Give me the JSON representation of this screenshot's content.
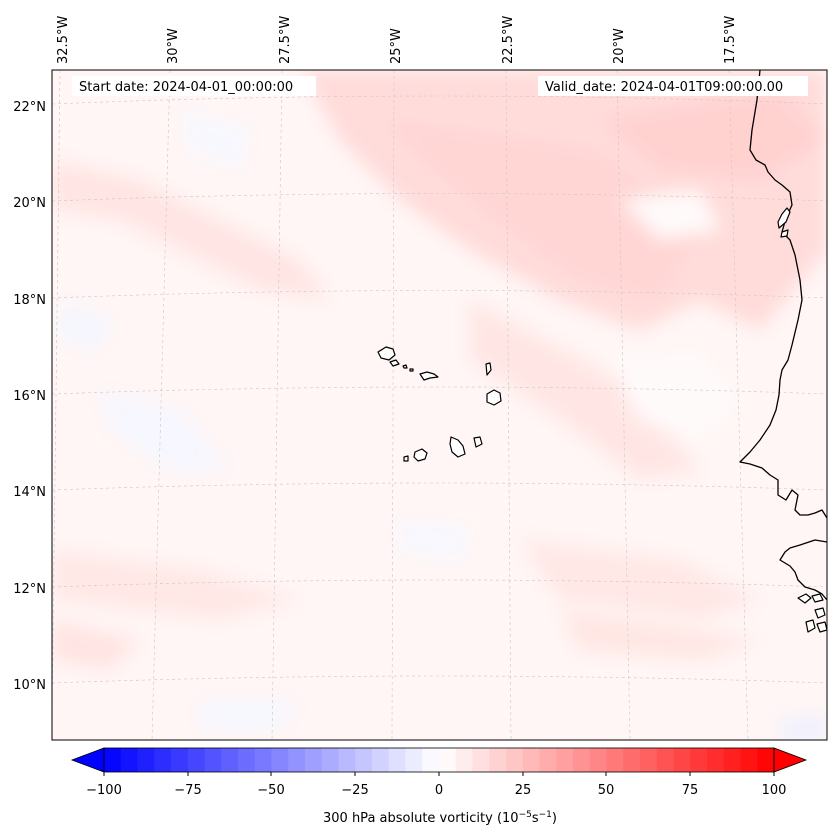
{
  "map": {
    "header": {
      "start_date": "Start date: 2024-04-01_00:00:00",
      "valid_date": "Valid_date: 2024-04-01T09:00:00.00"
    },
    "longitude_labels": [
      "32.5°W",
      "30°W",
      "27.5°W",
      "25°W",
      "22.5°W",
      "20°W",
      "17.5°W"
    ],
    "latitude_labels": [
      "22°N",
      "20°N",
      "18°N",
      "16°N",
      "14°N",
      "12°N",
      "10°N"
    ],
    "colorbar": {
      "label_prefix": "300 hPa absolute vorticity (10",
      "label_exp1": "−5",
      "label_mid": "s",
      "label_exp2": "−1",
      "label_suffix": ")",
      "ticks": [
        "−100",
        "−75",
        "−50",
        "−25",
        "0",
        "25",
        "50",
        "75",
        "100"
      ],
      "min_color": "#0000ff",
      "mid_color": "#ffffff",
      "max_color": "#ff0000"
    }
  }
}
